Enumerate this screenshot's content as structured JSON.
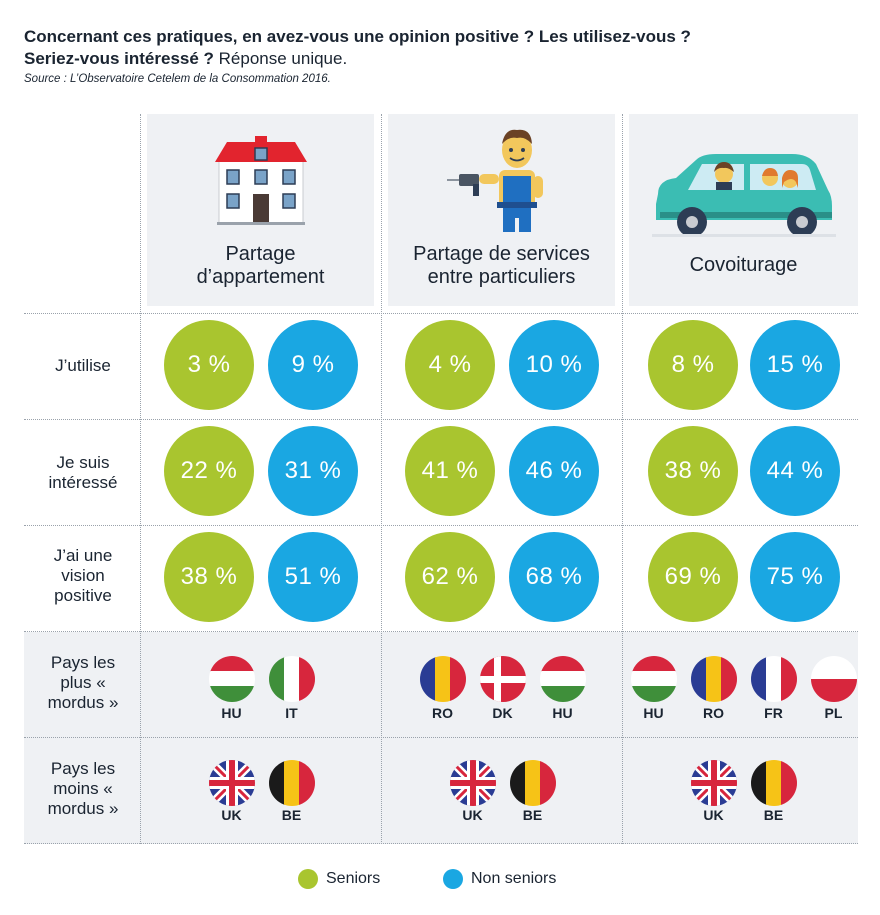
{
  "header": {
    "title_bold_1": "Concernant ces pratiques, en avez-vous une opinion positive ? Les utilisez-vous ?",
    "title_bold_2": "Seriez-vous intéressé ?",
    "title_normal_2": " Réponse unique.",
    "source": "Source : L’Observatoire Cetelem de la Consommation 2016."
  },
  "columns": [
    {
      "line1": "Partage",
      "line2": "d’appartement",
      "icon": "house-icon"
    },
    {
      "line1": "Partage de services",
      "line2": "entre particuliers",
      "icon": "handyman-icon"
    },
    {
      "line1": "Covoiturage",
      "line2": "",
      "icon": "car-icon"
    }
  ],
  "rows": [
    {
      "label": "J’utilise"
    },
    {
      "label": "Je suis intéressé"
    },
    {
      "label": "J’ai une vision positive"
    },
    {
      "label": "Pays les plus « mordus »"
    },
    {
      "label": "Pays les moins « mordus »"
    }
  ],
  "chart_data": {
    "type": "table",
    "title": "Concernant ces pratiques, en avez-vous une opinion positive ? Les utilisez-vous ? Seriez-vous intéressé ?",
    "categories": [
      "Partage d’appartement",
      "Partage de services entre particuliers",
      "Covoiturage"
    ],
    "metrics": [
      "J’utilise",
      "Je suis intéressé",
      "J’ai une vision positive"
    ],
    "series": [
      {
        "name": "Seniors",
        "color": "#a9c52f",
        "values": [
          [
            3,
            4,
            8
          ],
          [
            22,
            41,
            38
          ],
          [
            38,
            62,
            69
          ]
        ]
      },
      {
        "name": "Non seniors",
        "color": "#1aa7e2",
        "values": [
          [
            9,
            10,
            15
          ],
          [
            31,
            46,
            44
          ],
          [
            51,
            68,
            75
          ]
        ]
      }
    ],
    "unit": "%"
  },
  "cells": [
    [
      {
        "s": "3 %",
        "n": "9 %"
      },
      {
        "s": "4 %",
        "n": "10 %"
      },
      {
        "s": "8 %",
        "n": "15 %"
      }
    ],
    [
      {
        "s": "22 %",
        "n": "31 %"
      },
      {
        "s": "41 %",
        "n": "46 %"
      },
      {
        "s": "38 %",
        "n": "44 %"
      }
    ],
    [
      {
        "s": "38 %",
        "n": "51 %"
      },
      {
        "s": "62 %",
        "n": "68 %"
      },
      {
        "s": "69 %",
        "n": "75 %"
      }
    ]
  ],
  "most_keen": [
    [
      "HU",
      "IT"
    ],
    [
      "RO",
      "DK",
      "HU"
    ],
    [
      "HU",
      "RO",
      "FR",
      "PL"
    ]
  ],
  "least_keen": [
    [
      "UK",
      "BE"
    ],
    [
      "UK",
      "BE"
    ],
    [
      "UK",
      "BE"
    ]
  ],
  "legend": {
    "seniors": "Seniors",
    "non_seniors": "Non seniors"
  }
}
